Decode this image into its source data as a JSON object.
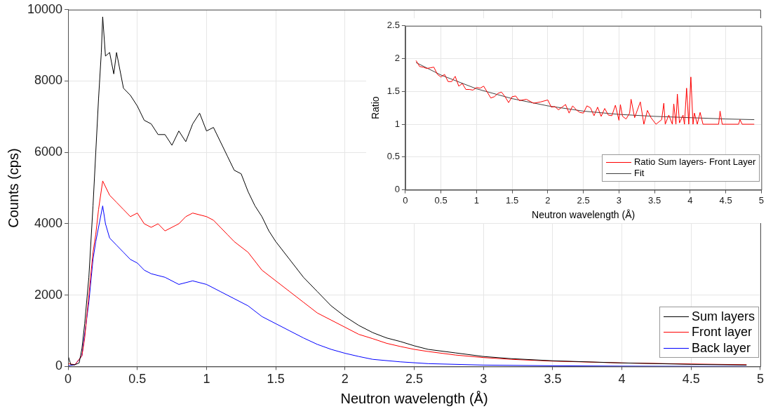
{
  "chart_data": [
    {
      "type": "line",
      "xlabel": "Neutron wavelength (Å)",
      "ylabel": "Counts (cps)",
      "xlim": [
        0,
        5
      ],
      "ylim": [
        0,
        10000
      ],
      "xticks": [
        0,
        0.5,
        1,
        1.5,
        2,
        2.5,
        3,
        3.5,
        4,
        4.5,
        5
      ],
      "yticks": [
        0,
        2000,
        4000,
        6000,
        8000,
        10000
      ],
      "grid": true,
      "legend": "bottom right",
      "series": [
        {
          "name": "Sum layers",
          "color": "#000000",
          "x": [
            0,
            0.02,
            0.05,
            0.08,
            0.1,
            0.12,
            0.15,
            0.18,
            0.2,
            0.22,
            0.24,
            0.25,
            0.27,
            0.3,
            0.33,
            0.35,
            0.4,
            0.45,
            0.5,
            0.55,
            0.6,
            0.65,
            0.7,
            0.75,
            0.8,
            0.85,
            0.9,
            0.95,
            1.0,
            1.05,
            1.1,
            1.15,
            1.2,
            1.25,
            1.3,
            1.35,
            1.4,
            1.45,
            1.5,
            1.6,
            1.7,
            1.8,
            1.9,
            2.0,
            2.1,
            2.2,
            2.3,
            2.4,
            2.5,
            2.6,
            2.8,
            3.0,
            3.2,
            3.5,
            4.0,
            4.5,
            4.9
          ],
          "values": [
            300,
            50,
            50,
            100,
            500,
            1200,
            2500,
            4500,
            6000,
            7500,
            8800,
            9800,
            8700,
            8800,
            8200,
            8800,
            7800,
            7600,
            7300,
            6900,
            6800,
            6500,
            6500,
            6200,
            6600,
            6300,
            6800,
            7100,
            6600,
            6700,
            6300,
            5900,
            5500,
            5400,
            4900,
            4500,
            4200,
            3800,
            3500,
            3000,
            2500,
            2100,
            1700,
            1400,
            1150,
            950,
            800,
            700,
            580,
            480,
            380,
            280,
            220,
            160,
            100,
            60,
            40
          ]
        },
        {
          "name": "Front layer",
          "color": "#ff0000",
          "x": [
            0,
            0.05,
            0.1,
            0.12,
            0.15,
            0.18,
            0.2,
            0.22,
            0.25,
            0.3,
            0.35,
            0.4,
            0.45,
            0.5,
            0.55,
            0.6,
            0.65,
            0.7,
            0.8,
            0.85,
            0.9,
            1.0,
            1.05,
            1.1,
            1.15,
            1.2,
            1.3,
            1.4,
            1.5,
            1.6,
            1.7,
            1.8,
            1.9,
            2.0,
            2.1,
            2.2,
            2.3,
            2.4,
            2.5,
            2.6,
            2.8,
            3.0,
            3.2,
            3.5,
            4.0,
            4.5,
            4.9
          ],
          "values": [
            80,
            50,
            300,
            800,
            2000,
            3200,
            3700,
            4400,
            5200,
            4800,
            4600,
            4400,
            4200,
            4300,
            4000,
            3900,
            4000,
            3800,
            4000,
            4200,
            4300,
            4200,
            4100,
            3900,
            3700,
            3500,
            3200,
            2700,
            2400,
            2100,
            1800,
            1500,
            1300,
            1100,
            900,
            780,
            650,
            560,
            480,
            420,
            320,
            250,
            200,
            150,
            100,
            70,
            50
          ]
        },
        {
          "name": "Back layer",
          "color": "#0000ff",
          "x": [
            0,
            0.05,
            0.1,
            0.15,
            0.18,
            0.2,
            0.22,
            0.25,
            0.27,
            0.3,
            0.35,
            0.4,
            0.45,
            0.5,
            0.55,
            0.6,
            0.7,
            0.8,
            0.9,
            1.0,
            1.1,
            1.2,
            1.3,
            1.4,
            1.5,
            1.6,
            1.7,
            1.8,
            1.9,
            2.0,
            2.1,
            2.2,
            2.4,
            2.6,
            3.0,
            3.5,
            4.0,
            4.9
          ],
          "values": [
            20,
            50,
            300,
            1800,
            3000,
            3500,
            3900,
            4500,
            4000,
            3600,
            3400,
            3200,
            3000,
            2900,
            2700,
            2600,
            2500,
            2300,
            2400,
            2300,
            2100,
            1900,
            1700,
            1400,
            1200,
            1000,
            800,
            620,
            480,
            370,
            280,
            200,
            130,
            80,
            40,
            20,
            10,
            0
          ]
        }
      ]
    },
    {
      "type": "line",
      "xlabel": "Neutron wavelength (Å)",
      "ylabel": "Ratio",
      "xlim": [
        0,
        5
      ],
      "ylim": [
        0,
        2.5
      ],
      "xticks": [
        0,
        0.5,
        1,
        1.5,
        2,
        2.5,
        3,
        3.5,
        4,
        4.5,
        5
      ],
      "yticks": [
        0,
        0.5,
        1,
        1.5,
        2,
        2.5
      ],
      "grid": true,
      "legend": "bottom right",
      "series": [
        {
          "name": "Ratio Sum layers- Front Layer",
          "color": "#ff0000",
          "x": [
            0.15,
            0.2,
            0.25,
            0.3,
            0.35,
            0.4,
            0.45,
            0.5,
            0.55,
            0.6,
            0.65,
            0.7,
            0.75,
            0.8,
            0.85,
            0.9,
            0.95,
            1.0,
            1.05,
            1.1,
            1.15,
            1.2,
            1.25,
            1.3,
            1.35,
            1.4,
            1.45,
            1.5,
            1.55,
            1.6,
            1.7,
            1.8,
            1.9,
            2.0,
            2.05,
            2.1,
            2.15,
            2.2,
            2.25,
            2.3,
            2.35,
            2.4,
            2.45,
            2.5,
            2.55,
            2.6,
            2.65,
            2.7,
            2.75,
            2.8,
            2.85,
            2.9,
            2.95,
            3.0,
            3.02,
            3.05,
            3.1,
            3.15,
            3.17,
            3.22,
            3.3,
            3.35,
            3.4,
            3.45,
            3.52,
            3.6,
            3.63,
            3.65,
            3.7,
            3.75,
            3.77,
            3.8,
            3.82,
            3.85,
            3.9,
            3.92,
            3.95,
            3.98,
            4.01,
            4.04,
            4.06,
            4.1,
            4.14,
            4.18,
            4.4,
            4.42,
            4.45,
            4.68,
            4.7,
            4.73,
            4.9
          ],
          "values": [
            1.97,
            1.88,
            1.87,
            1.85,
            1.86,
            1.87,
            1.76,
            1.72,
            1.76,
            1.65,
            1.65,
            1.73,
            1.58,
            1.62,
            1.53,
            1.53,
            1.52,
            1.56,
            1.55,
            1.58,
            1.49,
            1.4,
            1.42,
            1.47,
            1.49,
            1.42,
            1.33,
            1.42,
            1.43,
            1.36,
            1.38,
            1.32,
            1.34,
            1.37,
            1.26,
            1.27,
            1.22,
            1.26,
            1.3,
            1.17,
            1.28,
            1.22,
            1.18,
            1.17,
            1.28,
            1.25,
            1.13,
            1.26,
            1.12,
            1.24,
            1.14,
            1.13,
            1.29,
            1.06,
            1.3,
            1.12,
            1.08,
            1.17,
            1.38,
            1.1,
            1.34,
            1.0,
            1.21,
            1.1,
            1.0,
            1.07,
            1.32,
            1.0,
            1.14,
            1.0,
            1.31,
            1.0,
            1.46,
            1.02,
            1.14,
            1.0,
            1.55,
            1.0,
            1.72,
            1.0,
            1.17,
            1.0,
            1.18,
            1.0,
            1.0,
            1.2,
            1.0,
            1.0,
            1.07,
            1.0,
            1.0
          ]
        },
        {
          "name": "Fit",
          "color": "#404040",
          "x": [
            0.15,
            0.5,
            1.0,
            1.5,
            2.0,
            2.5,
            3.0,
            3.5,
            4.0,
            4.5,
            4.9
          ],
          "values": [
            1.94,
            1.75,
            1.54,
            1.39,
            1.28,
            1.2,
            1.15,
            1.12,
            1.1,
            1.08,
            1.07
          ]
        }
      ]
    }
  ]
}
